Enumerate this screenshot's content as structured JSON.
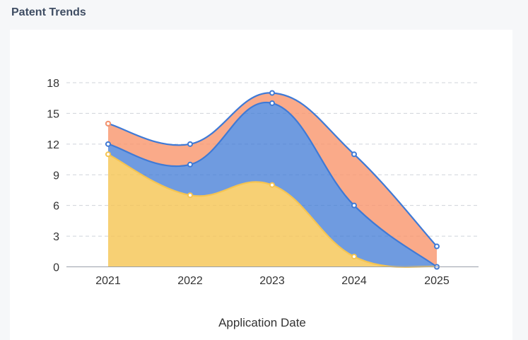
{
  "page": {
    "title": "Patent Trends"
  },
  "chart_data": {
    "type": "area",
    "stacked": true,
    "smooth": true,
    "title": "Patent Trends",
    "xlabel": "Application Date",
    "ylabel": "",
    "categories": [
      "2021",
      "2022",
      "2023",
      "2024",
      "2025"
    ],
    "ylim": [
      0,
      18
    ],
    "yticks": [
      0,
      3,
      6,
      9,
      12,
      15,
      18
    ],
    "grid": true,
    "series": [
      {
        "values": [
          11,
          7,
          8,
          1,
          0
        ],
        "color": "#f5c451"
      },
      {
        "values": [
          1,
          3,
          8,
          5,
          0
        ],
        "color": "#3f7ad6"
      },
      {
        "values": [
          2,
          2,
          1,
          5,
          2
        ],
        "color": "#f9956c",
        "line_color": "#3f7ad6"
      }
    ]
  }
}
